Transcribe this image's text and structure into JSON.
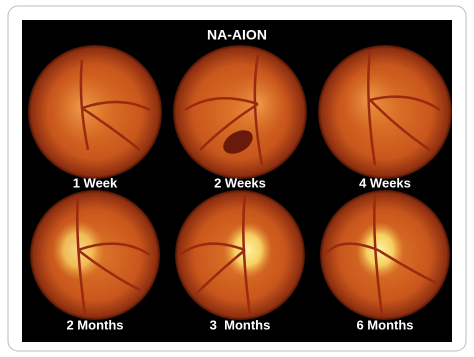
{
  "title": "NA-AION",
  "panels": [
    {
      "label": "1 Week"
    },
    {
      "label": "2 Weeks"
    },
    {
      "label": "4 Weeks"
    },
    {
      "label": "2 Months"
    },
    {
      "label": "3  Months"
    },
    {
      "label": "6 Months"
    }
  ]
}
